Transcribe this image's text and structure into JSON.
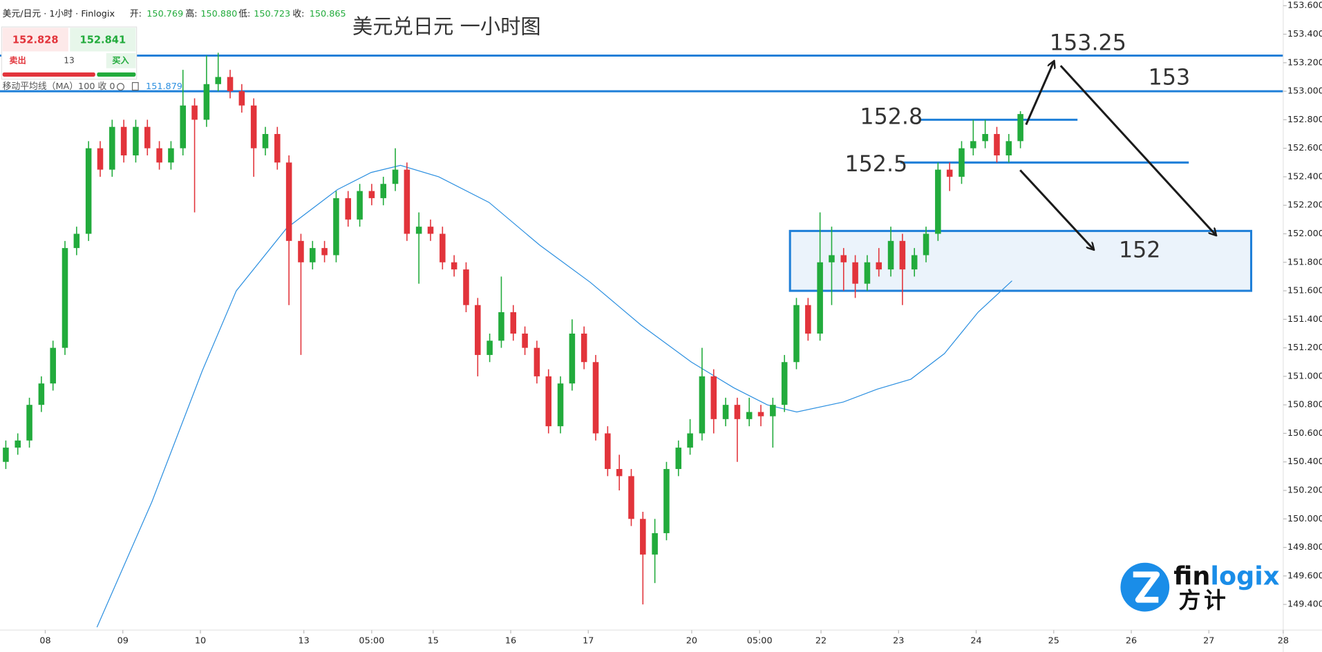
{
  "header": {
    "symbol": "美元/日元 · 1小时 · Finlogix",
    "open_label": "开:",
    "open": "150.769",
    "high_label": "高:",
    "high": "150.880",
    "low_label": "低:",
    "low": "150.723",
    "close_label": "收:",
    "close": "150.865"
  },
  "widget": {
    "sell_price": "152.828",
    "buy_price": "152.841",
    "sell": "卖出",
    "lots": "13",
    "buy": "买入"
  },
  "indicator": {
    "name": "移动平均线（MA）100 收 0",
    "value": "151.879"
  },
  "logo": {
    "wordmark": [
      "fin",
      "logix"
    ],
    "chinese": "方计"
  },
  "chart_data": {
    "type": "candlestick",
    "title": "美元兑日元 一小时图",
    "x": [
      1.8,
      5.5,
      9.1,
      12.8,
      16.4,
      20.1,
      23.7,
      27.4,
      31.0,
      34.7,
      38.3,
      42.0,
      45.6,
      49.3,
      52.9,
      56.6,
      60.2,
      63.9,
      67.5,
      71.2,
      74.8,
      78.5,
      82.1,
      85.8,
      89.4,
      93.1,
      96.7,
      100.4,
      104.0,
      107.7,
      111.3,
      115.0,
      118.6,
      122.3,
      125.9,
      129.6,
      133.2,
      136.9,
      140.5,
      144.2,
      147.8,
      151.5,
      155.1,
      158.8,
      162.4,
      166.1,
      169.7,
      173.4,
      177.0,
      180.7,
      184.3,
      188.0,
      191.6,
      195.3,
      198.9,
      202.6,
      206.2,
      209.9,
      213.5,
      217.2,
      220.8,
      224.5,
      228.1,
      231.8,
      235.4,
      239.1,
      242.7,
      246.4,
      250.0,
      253.7,
      257.3,
      261.0,
      264.6,
      268.3,
      271.9,
      275.6,
      279.2,
      282.9,
      286.5,
      290.2,
      293.8,
      297.5,
      301.1,
      304.8,
      308.4,
      312.1,
      315.7
    ],
    "open": [
      150.4,
      150.5,
      150.55,
      150.8,
      150.95,
      151.2,
      151.9,
      152.0,
      152.6,
      152.45,
      152.75,
      152.55,
      152.75,
      152.6,
      152.5,
      152.6,
      152.9,
      152.8,
      153.05,
      153.1,
      153.0,
      152.9,
      152.6,
      152.7,
      152.5,
      151.95,
      151.8,
      151.9,
      151.85,
      152.25,
      152.1,
      152.3,
      152.25,
      152.35,
      152.45,
      152.0,
      152.05,
      152.0,
      151.8,
      151.75,
      151.5,
      151.15,
      151.25,
      151.45,
      151.3,
      151.2,
      151.0,
      150.65,
      150.95,
      151.3,
      151.1,
      150.6,
      150.35,
      150.3,
      150.0,
      149.75,
      149.9,
      150.35,
      150.5,
      150.6,
      151.0,
      150.7,
      150.8,
      150.7,
      150.75,
      150.72,
      150.8,
      151.1,
      151.5,
      151.3,
      151.8,
      151.85,
      151.8,
      151.65,
      151.8,
      151.75,
      151.95,
      151.75,
      151.85,
      152.0,
      152.45,
      152.4,
      152.6,
      152.65,
      152.7,
      152.55,
      152.65
    ],
    "high": [
      150.55,
      150.6,
      150.85,
      151.0,
      151.25,
      151.95,
      152.05,
      152.65,
      152.65,
      152.8,
      152.8,
      152.8,
      152.8,
      152.65,
      152.65,
      153.15,
      152.95,
      153.25,
      153.27,
      153.15,
      153.05,
      152.95,
      152.75,
      152.75,
      152.55,
      152.0,
      151.95,
      151.95,
      152.3,
      152.3,
      152.35,
      152.35,
      152.4,
      152.6,
      152.5,
      152.15,
      152.1,
      152.05,
      151.85,
      151.8,
      151.55,
      151.3,
      151.7,
      151.5,
      151.35,
      151.25,
      151.05,
      151.0,
      151.4,
      151.35,
      151.15,
      150.65,
      150.45,
      150.35,
      150.05,
      150.0,
      150.4,
      150.55,
      150.7,
      151.2,
      151.05,
      150.85,
      150.85,
      150.85,
      150.8,
      150.85,
      151.15,
      151.55,
      151.55,
      152.15,
      152.05,
      151.9,
      151.85,
      151.85,
      151.9,
      152.05,
      152.0,
      151.9,
      152.05,
      152.5,
      152.5,
      152.65,
      152.8,
      152.8,
      152.75,
      152.7,
      152.86
    ],
    "low": [
      150.35,
      150.45,
      150.5,
      150.75,
      150.9,
      151.15,
      151.85,
      151.95,
      152.4,
      152.4,
      152.5,
      152.5,
      152.55,
      152.45,
      152.45,
      152.55,
      152.15,
      152.75,
      153.0,
      152.95,
      152.85,
      152.4,
      152.55,
      152.45,
      151.5,
      151.15,
      151.75,
      151.8,
      151.8,
      152.05,
      152.05,
      152.2,
      152.2,
      152.3,
      151.95,
      151.65,
      151.95,
      151.75,
      151.7,
      151.45,
      151.0,
      151.1,
      151.2,
      151.25,
      151.15,
      150.95,
      150.6,
      150.6,
      150.9,
      151.05,
      150.55,
      150.3,
      150.2,
      149.95,
      149.4,
      149.55,
      149.85,
      150.3,
      150.45,
      150.55,
      150.6,
      150.65,
      150.4,
      150.65,
      150.65,
      150.5,
      150.75,
      151.05,
      151.25,
      151.25,
      151.5,
      151.6,
      151.55,
      151.6,
      151.7,
      151.7,
      151.5,
      151.7,
      151.8,
      151.95,
      152.3,
      152.35,
      152.55,
      152.6,
      152.5,
      152.5,
      152.6
    ],
    "close": [
      150.5,
      150.55,
      150.8,
      150.95,
      151.2,
      151.9,
      152.0,
      152.6,
      152.45,
      152.75,
      152.55,
      152.75,
      152.6,
      152.5,
      152.6,
      152.9,
      152.8,
      153.05,
      153.1,
      153.0,
      152.9,
      152.6,
      152.7,
      152.5,
      151.95,
      151.8,
      151.9,
      151.85,
      152.25,
      152.1,
      152.3,
      152.25,
      152.35,
      152.45,
      152.0,
      152.05,
      152.0,
      151.8,
      151.75,
      151.5,
      151.15,
      151.25,
      151.45,
      151.3,
      151.2,
      151.0,
      150.65,
      150.95,
      151.3,
      151.1,
      150.6,
      150.35,
      150.3,
      150.0,
      149.75,
      149.9,
      150.35,
      150.5,
      150.6,
      151.0,
      150.7,
      150.8,
      150.7,
      150.75,
      150.72,
      150.8,
      151.1,
      151.5,
      151.3,
      151.8,
      151.85,
      151.8,
      151.65,
      151.8,
      151.75,
      151.95,
      151.75,
      151.85,
      152.0,
      152.45,
      152.4,
      152.6,
      152.65,
      152.7,
      152.55,
      152.65,
      152.84
    ],
    "up_color": "#22ab3c",
    "down_color": "#e2343b",
    "ma": {
      "x": [
        30.0,
        47.0,
        62.6,
        73.1,
        88.7,
        104.4,
        114.8,
        123.9,
        135.7,
        151.3,
        167.0,
        182.6,
        198.3,
        213.9,
        227.0,
        237.4,
        246.5,
        260.9,
        271.4,
        281.8,
        292.2,
        302.6,
        313.1
      ],
      "values": [
        149.24,
        150.12,
        151.04,
        151.6,
        152.04,
        152.31,
        152.43,
        152.48,
        152.4,
        152.22,
        151.92,
        151.66,
        151.36,
        151.1,
        150.92,
        150.8,
        150.75,
        150.82,
        150.91,
        150.98,
        151.16,
        151.45,
        151.67
      ],
      "color": "#2b8fe0"
    },
    "xlim": [
      0,
      397
    ],
    "ylim": [
      149.22,
      153.64
    ],
    "grid": false,
    "xticks": [
      {
        "value": 14,
        "label": "08"
      },
      {
        "value": 38,
        "label": "09"
      },
      {
        "value": 62,
        "label": "10"
      },
      {
        "value": 94,
        "label": "13"
      },
      {
        "value": 115,
        "label": "05:00"
      },
      {
        "value": 134,
        "label": "15"
      },
      {
        "value": 158,
        "label": "16"
      },
      {
        "value": 182,
        "label": "17"
      },
      {
        "value": 214,
        "label": "20"
      },
      {
        "value": 235,
        "label": "05:00"
      },
      {
        "value": 254,
        "label": "22"
      },
      {
        "value": 278,
        "label": "23"
      },
      {
        "value": 302,
        "label": "24"
      },
      {
        "value": 326,
        "label": "25"
      },
      {
        "value": 350,
        "label": "26"
      },
      {
        "value": 374,
        "label": "27"
      },
      {
        "value": 397,
        "label": "28"
      }
    ],
    "yticks": [
      {
        "value": 149.4,
        "label": "149.400"
      },
      {
        "value": 149.6,
        "label": "149.600"
      },
      {
        "value": 149.8,
        "label": "149.800"
      },
      {
        "value": 150.0,
        "label": "150.000"
      },
      {
        "value": 150.2,
        "label": "150.200"
      },
      {
        "value": 150.4,
        "label": "150.400"
      },
      {
        "value": 150.6,
        "label": "150.600"
      },
      {
        "value": 150.8,
        "label": "150.800"
      },
      {
        "value": 151.0,
        "label": "151.000"
      },
      {
        "value": 151.2,
        "label": "151.200"
      },
      {
        "value": 151.4,
        "label": "151.400"
      },
      {
        "value": 151.6,
        "label": "151.600"
      },
      {
        "value": 151.8,
        "label": "151.800"
      },
      {
        "value": 152.0,
        "label": "152.000"
      },
      {
        "value": 152.2,
        "label": "152.200"
      },
      {
        "value": 152.4,
        "label": "152.400"
      },
      {
        "value": 152.6,
        "label": "152.600"
      },
      {
        "value": 152.8,
        "label": "152.800"
      },
      {
        "value": 153.0,
        "label": "153.000"
      },
      {
        "value": 153.2,
        "label": "153.200"
      },
      {
        "value": 153.4,
        "label": "153.400"
      },
      {
        "value": 153.6,
        "label": "153.600"
      }
    ],
    "annotations": {
      "resistance_lines": [
        153.25,
        153
      ],
      "levels": [
        152.8,
        152.5
      ],
      "zone": {
        "label": "152",
        "range": [
          151.6,
          152.02
        ]
      },
      "color": "#1e7fd8"
    }
  }
}
